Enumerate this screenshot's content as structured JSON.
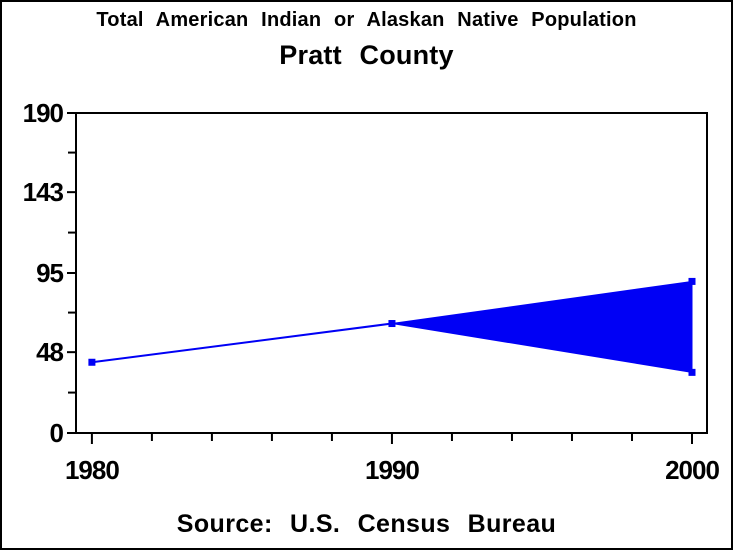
{
  "chart_data": {
    "type": "area",
    "title": "Total American Indian or Alaskan Native Population",
    "subtitle": "Pratt County",
    "footnote": "Source: U.S. Census Bureau",
    "xlabel": "",
    "ylabel": "",
    "xlim": [
      1979.47,
      2000.5
    ],
    "ylim": [
      0,
      190
    ],
    "x_ticks": [
      1980,
      1990,
      2000
    ],
    "x_minor_tick_step_years": 2,
    "y_ticks": [
      0,
      48,
      95,
      143,
      190
    ],
    "y_minor_ticks": "midpoints-between-majors",
    "grid": false,
    "legend_position": "none",
    "frame": true,
    "series": [
      {
        "name": "census-population-line",
        "type": "line",
        "points": [
          {
            "x": 1980,
            "y": 42
          },
          {
            "x": 1990,
            "y": 65
          }
        ]
      },
      {
        "name": "diverging-range-band",
        "type": "band",
        "points": [
          {
            "x": 1990,
            "lower": 65,
            "upper": 65
          },
          {
            "x": 2000,
            "lower": 36,
            "upper": 90
          }
        ]
      }
    ],
    "markers": [
      {
        "x": 1980,
        "y": 42
      },
      {
        "x": 1990,
        "y": 65
      },
      {
        "x": 2000,
        "y": 90
      },
      {
        "x": 2000,
        "y": 36
      }
    ],
    "colors": {
      "series": "#0000f5",
      "axis": "#000000",
      "text": "#000000",
      "background": "#ffffff"
    }
  }
}
